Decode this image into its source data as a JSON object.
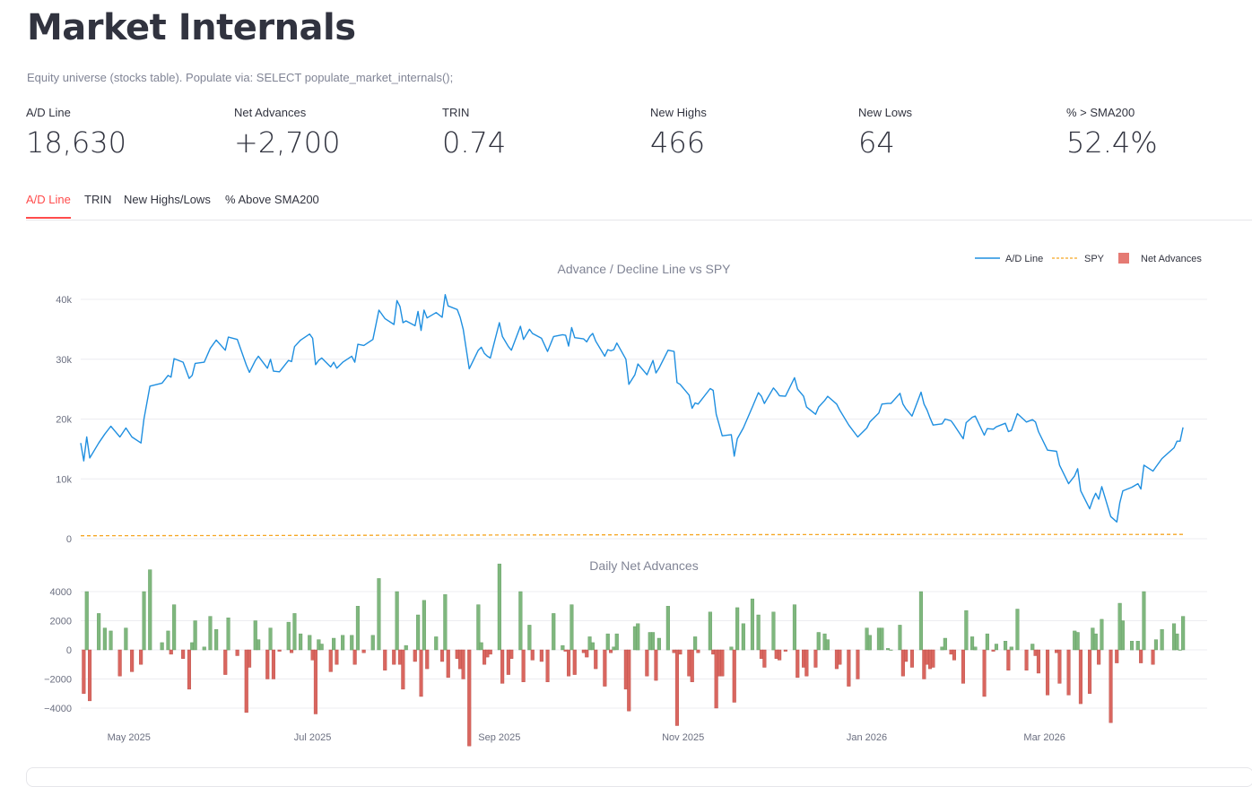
{
  "page": {
    "title": "Market Internals",
    "subtitle": "Equity universe (stocks table). Populate via: SELECT populate_market_internals();"
  },
  "metrics": [
    {
      "label": "A/D Line",
      "value": "18,630"
    },
    {
      "label": "Net Advances",
      "value": "+2,700"
    },
    {
      "label": "TRIN",
      "value": "0.74"
    },
    {
      "label": "New Highs",
      "value": "466"
    },
    {
      "label": "New Lows",
      "value": "64"
    },
    {
      "label": "% > SMA200",
      "value": "52.4%"
    }
  ],
  "tabs": [
    {
      "label": "A/D Line",
      "active": true
    },
    {
      "label": "TRIN",
      "active": false
    },
    {
      "label": "New Highs/Lows",
      "active": false
    },
    {
      "label": "% Above SMA200",
      "active": false
    }
  ],
  "chart_data": {
    "type": "line",
    "colors": {
      "ad_line": "#1f8fe0",
      "spy": "#f5a623",
      "pos": "#7fb77e",
      "neg": "#d9665f"
    },
    "legend": {
      "placement": "top-right",
      "entries": [
        "A/D Line",
        "SPY",
        "Net Advances"
      ]
    },
    "top": {
      "title": "Advance / Decline Line vs SPY",
      "ylim": [
        0,
        42000
      ],
      "yticks": [
        0,
        10000,
        20000,
        30000,
        40000
      ],
      "ytick_labels": [
        "0",
        "10k",
        "20k",
        "30k",
        "40k"
      ],
      "grid": true
    },
    "bottom": {
      "title": "Daily Net Advances",
      "type": "bar",
      "ylim": [
        -4500,
        5000
      ],
      "yticks": [
        -4000,
        -2000,
        0,
        2000,
        4000
      ],
      "ytick_labels": [
        "−4000",
        "−2000",
        "0",
        "2000",
        "4000"
      ],
      "grid": true
    },
    "xlim": [
      "2025-04-15",
      "2026-04-24"
    ],
    "xticks": [
      {
        "date": "2025-05-01",
        "label": "May 2025"
      },
      {
        "date": "2025-07-01",
        "label": "Jul 2025"
      },
      {
        "date": "2025-09-01",
        "label": "Sep 2025"
      },
      {
        "date": "2025-11-01",
        "label": "Nov 2025"
      },
      {
        "date": "2026-01-01",
        "label": "Jan 2026"
      },
      {
        "date": "2026-03-01",
        "label": "Mar 2026"
      }
    ],
    "ad_line": [
      [
        "2025-04-15",
        16000
      ],
      [
        "2025-04-16",
        13000
      ],
      [
        "2025-04-17",
        17000
      ],
      [
        "2025-04-18",
        13500
      ],
      [
        "2025-04-21",
        16000
      ],
      [
        "2025-04-23",
        17500
      ],
      [
        "2025-04-25",
        18800
      ],
      [
        "2025-04-28",
        17000
      ],
      [
        "2025-04-30",
        18500
      ],
      [
        "2025-05-02",
        17000
      ],
      [
        "2025-05-05",
        16000
      ],
      [
        "2025-05-06",
        20000
      ],
      [
        "2025-05-08",
        25500
      ],
      [
        "2025-05-12",
        26000
      ],
      [
        "2025-05-14",
        27300
      ],
      [
        "2025-05-15",
        27000
      ],
      [
        "2025-05-16",
        30100
      ],
      [
        "2025-05-19",
        29500
      ],
      [
        "2025-05-21",
        26800
      ],
      [
        "2025-05-22",
        27300
      ],
      [
        "2025-05-23",
        29300
      ],
      [
        "2025-05-26",
        29500
      ],
      [
        "2025-05-28",
        31800
      ],
      [
        "2025-05-30",
        33200
      ],
      [
        "2025-06-02",
        31500
      ],
      [
        "2025-06-03",
        33700
      ],
      [
        "2025-06-06",
        33300
      ],
      [
        "2025-06-09",
        29000
      ],
      [
        "2025-06-10",
        27800
      ],
      [
        "2025-06-12",
        29800
      ],
      [
        "2025-06-13",
        30500
      ],
      [
        "2025-06-16",
        28500
      ],
      [
        "2025-06-17",
        30000
      ],
      [
        "2025-06-18",
        28000
      ],
      [
        "2025-06-20",
        27900
      ],
      [
        "2025-06-23",
        29800
      ],
      [
        "2025-06-24",
        29600
      ],
      [
        "2025-06-25",
        32100
      ],
      [
        "2025-06-27",
        33200
      ],
      [
        "2025-06-30",
        34200
      ],
      [
        "2025-07-01",
        33500
      ],
      [
        "2025-07-02",
        29100
      ],
      [
        "2025-07-03",
        29800
      ],
      [
        "2025-07-04",
        30200
      ],
      [
        "2025-07-07",
        28700
      ],
      [
        "2025-07-08",
        29500
      ],
      [
        "2025-07-09",
        28500
      ],
      [
        "2025-07-11",
        29500
      ],
      [
        "2025-07-14",
        30500
      ],
      [
        "2025-07-15",
        29500
      ],
      [
        "2025-07-16",
        32500
      ],
      [
        "2025-07-18",
        32300
      ],
      [
        "2025-07-21",
        33300
      ],
      [
        "2025-07-23",
        38200
      ],
      [
        "2025-07-25",
        36800
      ],
      [
        "2025-07-28",
        35800
      ],
      [
        "2025-07-29",
        39800
      ],
      [
        "2025-07-30",
        38800
      ],
      [
        "2025-07-31",
        36100
      ],
      [
        "2025-08-01",
        36400
      ],
      [
        "2025-08-04",
        35600
      ],
      [
        "2025-08-05",
        38000
      ],
      [
        "2025-08-06",
        34800
      ],
      [
        "2025-08-07",
        38200
      ],
      [
        "2025-08-08",
        36900
      ],
      [
        "2025-08-11",
        37800
      ],
      [
        "2025-08-13",
        37000
      ],
      [
        "2025-08-14",
        40800
      ],
      [
        "2025-08-15",
        38900
      ],
      [
        "2025-08-18",
        38300
      ],
      [
        "2025-08-19",
        37000
      ],
      [
        "2025-08-20",
        35000
      ],
      [
        "2025-08-22",
        28400
      ],
      [
        "2025-08-25",
        31500
      ],
      [
        "2025-08-26",
        32000
      ],
      [
        "2025-08-27",
        31000
      ],
      [
        "2025-08-28",
        30500
      ],
      [
        "2025-08-29",
        30200
      ],
      [
        "2025-09-01",
        36100
      ],
      [
        "2025-09-02",
        33800
      ],
      [
        "2025-09-04",
        32100
      ],
      [
        "2025-09-05",
        31500
      ],
      [
        "2025-09-08",
        35500
      ],
      [
        "2025-09-09",
        33300
      ],
      [
        "2025-09-11",
        35000
      ],
      [
        "2025-09-12",
        34300
      ],
      [
        "2025-09-15",
        33500
      ],
      [
        "2025-09-17",
        31300
      ],
      [
        "2025-09-19",
        33800
      ],
      [
        "2025-09-22",
        34100
      ],
      [
        "2025-09-23",
        34000
      ],
      [
        "2025-09-24",
        32200
      ],
      [
        "2025-09-25",
        35300
      ],
      [
        "2025-09-26",
        33600
      ],
      [
        "2025-09-29",
        33400
      ],
      [
        "2025-09-30",
        32900
      ],
      [
        "2025-10-01",
        33800
      ],
      [
        "2025-10-02",
        34300
      ],
      [
        "2025-10-03",
        33000
      ],
      [
        "2025-10-06",
        30500
      ],
      [
        "2025-10-07",
        31600
      ],
      [
        "2025-10-08",
        31400
      ],
      [
        "2025-10-09",
        31600
      ],
      [
        "2025-10-10",
        32700
      ],
      [
        "2025-10-13",
        30000
      ],
      [
        "2025-10-14",
        25800
      ],
      [
        "2025-10-16",
        27400
      ],
      [
        "2025-10-17",
        29200
      ],
      [
        "2025-10-20",
        27400
      ],
      [
        "2025-10-21",
        28600
      ],
      [
        "2025-10-22",
        29800
      ],
      [
        "2025-10-23",
        27700
      ],
      [
        "2025-10-24",
        28500
      ],
      [
        "2025-10-27",
        31500
      ],
      [
        "2025-10-29",
        31300
      ],
      [
        "2025-10-30",
        26100
      ],
      [
        "2025-10-31",
        25800
      ],
      [
        "2025-11-03",
        24000
      ],
      [
        "2025-11-04",
        21800
      ],
      [
        "2025-11-05",
        22700
      ],
      [
        "2025-11-06",
        22500
      ],
      [
        "2025-11-10",
        25100
      ],
      [
        "2025-11-11",
        24800
      ],
      [
        "2025-11-12",
        20800
      ],
      [
        "2025-11-13",
        19000
      ],
      [
        "2025-11-14",
        17200
      ],
      [
        "2025-11-17",
        17400
      ],
      [
        "2025-11-18",
        13800
      ],
      [
        "2025-11-19",
        16700
      ],
      [
        "2025-11-21",
        18500
      ],
      [
        "2025-11-24",
        22000
      ],
      [
        "2025-11-26",
        24400
      ],
      [
        "2025-11-27",
        23800
      ],
      [
        "2025-11-28",
        22600
      ],
      [
        "2025-12-01",
        25200
      ],
      [
        "2025-12-02",
        24600
      ],
      [
        "2025-12-03",
        23900
      ],
      [
        "2025-12-05",
        23800
      ],
      [
        "2025-12-08",
        26900
      ],
      [
        "2025-12-09",
        25000
      ],
      [
        "2025-12-11",
        23800
      ],
      [
        "2025-12-12",
        22000
      ],
      [
        "2025-12-15",
        20800
      ],
      [
        "2025-12-16",
        22000
      ],
      [
        "2025-12-18",
        23100
      ],
      [
        "2025-12-19",
        23800
      ],
      [
        "2025-12-22",
        22500
      ],
      [
        "2025-12-23",
        21500
      ],
      [
        "2025-12-26",
        19000
      ],
      [
        "2025-12-29",
        17000
      ],
      [
        "2026-01-01",
        18500
      ],
      [
        "2026-01-02",
        19500
      ],
      [
        "2026-01-05",
        21000
      ],
      [
        "2026-01-06",
        22500
      ],
      [
        "2026-01-08",
        22600
      ],
      [
        "2026-01-09",
        22600
      ],
      [
        "2026-01-12",
        24300
      ],
      [
        "2026-01-13",
        22500
      ],
      [
        "2026-01-14",
        21700
      ],
      [
        "2026-01-16",
        20500
      ],
      [
        "2026-01-19",
        24500
      ],
      [
        "2026-01-20",
        22500
      ],
      [
        "2026-01-21",
        21500
      ],
      [
        "2026-01-22",
        20200
      ],
      [
        "2026-01-23",
        19000
      ],
      [
        "2026-01-26",
        19200
      ],
      [
        "2026-01-27",
        20000
      ],
      [
        "2026-01-29",
        19700
      ],
      [
        "2026-01-30",
        19000
      ],
      [
        "2026-02-02",
        16700
      ],
      [
        "2026-02-03",
        19400
      ],
      [
        "2026-02-05",
        20300
      ],
      [
        "2026-02-06",
        20500
      ],
      [
        "2026-02-09",
        17300
      ],
      [
        "2026-02-10",
        18400
      ],
      [
        "2026-02-12",
        18300
      ],
      [
        "2026-02-13",
        18700
      ],
      [
        "2026-02-16",
        19300
      ],
      [
        "2026-02-17",
        17900
      ],
      [
        "2026-02-18",
        18100
      ],
      [
        "2026-02-20",
        20900
      ],
      [
        "2026-02-23",
        19500
      ],
      [
        "2026-02-25",
        19900
      ],
      [
        "2026-02-26",
        19500
      ],
      [
        "2026-02-27",
        17900
      ],
      [
        "2026-03-02",
        14800
      ],
      [
        "2026-03-05",
        14600
      ],
      [
        "2026-03-06",
        12300
      ],
      [
        "2026-03-09",
        9200
      ],
      [
        "2026-03-11",
        10500
      ],
      [
        "2026-03-12",
        11700
      ],
      [
        "2026-03-13",
        8000
      ],
      [
        "2026-03-16",
        5000
      ],
      [
        "2026-03-17",
        6500
      ],
      [
        "2026-03-18",
        7600
      ],
      [
        "2026-03-19",
        6600
      ],
      [
        "2026-03-20",
        8700
      ],
      [
        "2026-03-23",
        3700
      ],
      [
        "2026-03-25",
        2800
      ],
      [
        "2026-03-26",
        6000
      ],
      [
        "2026-03-27",
        8000
      ],
      [
        "2026-03-30",
        8600
      ],
      [
        "2026-04-01",
        9200
      ],
      [
        "2026-04-02",
        8300
      ],
      [
        "2026-04-03",
        12300
      ],
      [
        "2026-04-06",
        11300
      ],
      [
        "2026-04-07",
        12000
      ],
      [
        "2026-04-09",
        13400
      ],
      [
        "2026-04-13",
        15200
      ],
      [
        "2026-04-14",
        16300
      ],
      [
        "2026-04-15",
        16300
      ],
      [
        "2026-04-16",
        18600
      ]
    ],
    "spy": [
      [
        "2025-04-15",
        500
      ],
      [
        "2025-07-01",
        560
      ],
      [
        "2025-10-01",
        640
      ],
      [
        "2026-01-01",
        700
      ],
      [
        "2026-04-16",
        720
      ]
    ]
  }
}
